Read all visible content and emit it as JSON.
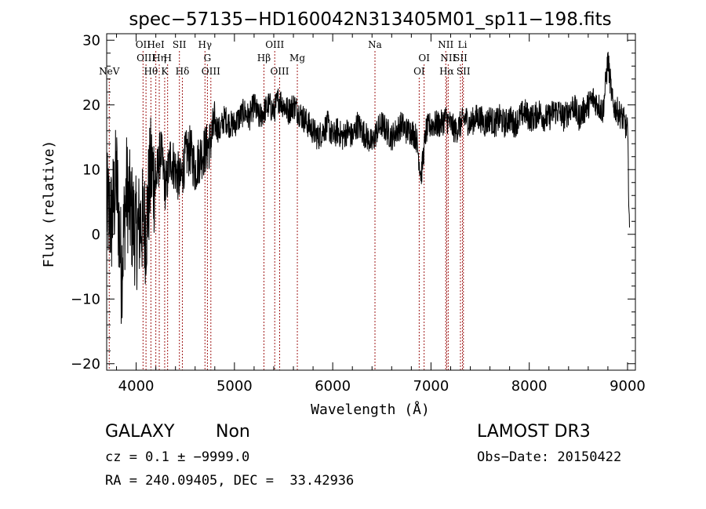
{
  "chart_data": {
    "type": "line",
    "title": "spec−57135−HD160042N313405M01_sp11−198.fits",
    "xlabel": "Wavelength (Å)",
    "ylabel": "Flux (relative)",
    "xlim": [
      3700,
      9080
    ],
    "ylim": [
      -21,
      31
    ],
    "xticks": [
      4000,
      5000,
      6000,
      7000,
      8000,
      9000
    ],
    "xtick_labels": [
      "4000",
      "5000",
      "6000",
      "7000",
      "8000",
      "9000"
    ],
    "yticks": [
      -20,
      -10,
      0,
      10,
      20,
      30
    ],
    "ytick_labels": [
      "−20",
      "−10",
      "0",
      "10",
      "20",
      "30"
    ],
    "grid": false,
    "series": [
      {
        "name": "flux",
        "x": [
          3700,
          3750,
          3800,
          3850,
          3900,
          3950,
          4000,
          4050,
          4100,
          4150,
          4200,
          4250,
          4300,
          4350,
          4400,
          4450,
          4500,
          4550,
          4600,
          4650,
          4700,
          4750,
          4800,
          4850,
          4900,
          4950,
          5000,
          5050,
          5100,
          5150,
          5200,
          5250,
          5300,
          5350,
          5400,
          5450,
          5500,
          5550,
          5600,
          5650,
          5700,
          5750,
          5800,
          5850,
          5900,
          5950,
          6000,
          6050,
          6100,
          6150,
          6200,
          6250,
          6300,
          6350,
          6400,
          6450,
          6500,
          6550,
          6600,
          6650,
          6700,
          6750,
          6800,
          6850,
          6900,
          6950,
          7000,
          7050,
          7100,
          7150,
          7200,
          7250,
          7300,
          7350,
          7400,
          7450,
          7500,
          7550,
          7600,
          7650,
          7700,
          7750,
          7800,
          7850,
          7900,
          7950,
          8000,
          8050,
          8100,
          8150,
          8200,
          8250,
          8300,
          8350,
          8400,
          8450,
          8500,
          8550,
          8600,
          8650,
          8700,
          8750,
          8800,
          8850,
          8900,
          8950,
          9000,
          9020
        ],
        "y": [
          4,
          2,
          9,
          -6,
          7,
          3,
          0,
          2,
          1,
          10,
          8,
          13,
          7,
          12,
          10,
          8,
          12,
          13,
          10,
          12,
          13,
          14,
          17,
          16,
          18,
          17,
          17,
          18,
          19,
          18,
          20,
          18,
          19,
          20,
          19,
          21,
          20,
          19,
          20,
          19,
          18,
          17,
          16,
          15,
          16,
          17,
          15,
          16,
          15,
          16,
          15,
          17,
          16,
          15,
          14,
          16,
          17,
          16,
          15,
          16,
          17,
          16,
          16,
          15,
          9,
          16,
          17,
          17,
          17,
          18,
          17,
          16,
          17,
          18,
          17,
          18,
          18,
          17,
          18,
          17,
          18,
          17,
          18,
          17,
          18,
          19,
          18,
          18,
          19,
          18,
          18,
          19,
          19,
          18,
          19,
          20,
          18,
          19,
          20,
          21,
          20,
          19,
          27,
          20,
          19,
          18,
          16,
          1
        ]
      }
    ],
    "spectral_lines": [
      {
        "name": "NeV",
        "x": 3726,
        "row": 3
      },
      {
        "name": "OII",
        "x": 4070,
        "row": 0
      },
      {
        "name": "OIII",
        "x": 4100,
        "row": 1
      },
      {
        "name": "Hθ",
        "x": 4150,
        "row": 2
      },
      {
        "name": "HeI",
        "x": 4200,
        "row": 0
      },
      {
        "name": "Hη",
        "x": 4235,
        "row": 1
      },
      {
        "name": "K",
        "x": 4290,
        "row": 2
      },
      {
        "name": "H",
        "x": 4320,
        "row": 1
      },
      {
        "name": "SII",
        "x": 4440,
        "row": 0
      },
      {
        "name": "Hδ",
        "x": 4470,
        "row": 2
      },
      {
        "name": "Hγ",
        "x": 4700,
        "row": 0
      },
      {
        "name": "G",
        "x": 4725,
        "row": 1
      },
      {
        "name": "OIII",
        "x": 4760,
        "row": 2
      },
      {
        "name": "Hβ",
        "x": 5300,
        "row": 1
      },
      {
        "name": "OIII",
        "x": 5410,
        "row": 0
      },
      {
        "name": "OIII",
        "x": 5460,
        "row": 2
      },
      {
        "name": "Mg",
        "x": 5640,
        "row": 1
      },
      {
        "name": "Na",
        "x": 6430,
        "row": 0
      },
      {
        "name": "OI",
        "x": 6880,
        "row": 2
      },
      {
        "name": "OI",
        "x": 6930,
        "row": 1
      },
      {
        "name": "NII",
        "x": 7150,
        "row": 0
      },
      {
        "name": "NII",
        "x": 7175,
        "row": 1
      },
      {
        "name": "Hα",
        "x": 7160,
        "row": 2
      },
      {
        "name": "SII",
        "x": 7300,
        "row": 1
      },
      {
        "name": "SII",
        "x": 7330,
        "row": 2
      },
      {
        "name": "Li",
        "x": 7320,
        "row": 0
      }
    ],
    "line_color": "#000000",
    "marker_color": "#a01a1a"
  },
  "info": {
    "class_label": "GALAXY",
    "subclass_label": "Non",
    "survey": "LAMOST DR3",
    "cz_text": "cz = 0.1 ± −9999.0",
    "obs_date": "Obs−Date: 20150422",
    "radec_text": "RA = 240.09405, DEC =  33.42936"
  }
}
